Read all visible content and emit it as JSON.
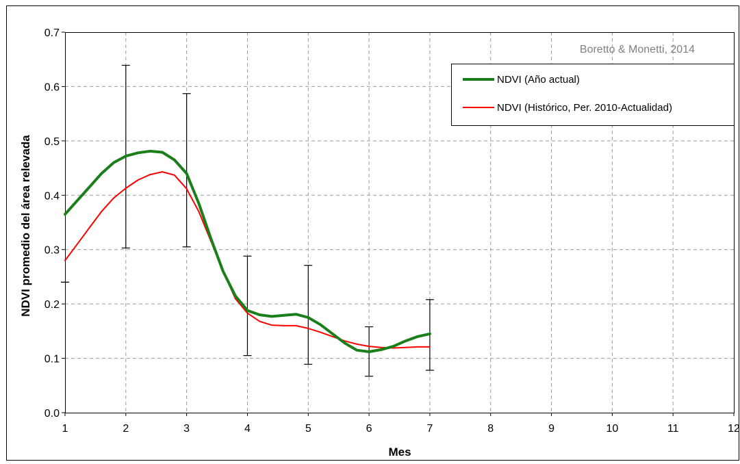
{
  "chart_data": {
    "type": "line",
    "title": "",
    "annotation": "Boretto & Monetti, 2014",
    "xlabel": "Mes",
    "ylabel": "NDVI promedio del área relevada",
    "xlim": [
      1,
      12
    ],
    "ylim": [
      0,
      0.7
    ],
    "x_ticks": [
      "1",
      "2",
      "3",
      "4",
      "5",
      "6",
      "7",
      "8",
      "9",
      "10",
      "11",
      "12"
    ],
    "y_ticks": [
      "0.0",
      "0.1",
      "0.2",
      "0.3",
      "0.4",
      "0.5",
      "0.6",
      "0.7"
    ],
    "grid": true,
    "legend_position": "top-right",
    "series": [
      {
        "name": "NDVI (Año actual)",
        "color": "#1a7f1a",
        "x": [
          1,
          1.2,
          1.4,
          1.6,
          1.8,
          2,
          2.2,
          2.4,
          2.6,
          2.8,
          3,
          3.2,
          3.4,
          3.6,
          3.8,
          4,
          4.2,
          4.4,
          4.6,
          4.8,
          5,
          5.2,
          5.4,
          5.6,
          5.8,
          6,
          6.2,
          6.4,
          6.6,
          6.8,
          7
        ],
        "y": [
          0.365,
          0.39,
          0.415,
          0.44,
          0.46,
          0.472,
          0.478,
          0.481,
          0.479,
          0.465,
          0.44,
          0.385,
          0.32,
          0.26,
          0.215,
          0.188,
          0.18,
          0.177,
          0.179,
          0.181,
          0.175,
          0.162,
          0.145,
          0.128,
          0.115,
          0.112,
          0.116,
          0.122,
          0.132,
          0.14,
          0.145
        ]
      },
      {
        "name": "NDVI (Histórico, Per. 2010-Actualidad)",
        "color": "#ff0000",
        "x": [
          1,
          1.2,
          1.4,
          1.6,
          1.8,
          2,
          2.2,
          2.4,
          2.6,
          2.8,
          3,
          3.2,
          3.4,
          3.6,
          3.8,
          4,
          4.2,
          4.4,
          4.6,
          4.8,
          5,
          5.2,
          5.4,
          5.6,
          5.8,
          6,
          6.2,
          6.4,
          6.6,
          6.8,
          7
        ],
        "y": [
          0.28,
          0.31,
          0.34,
          0.37,
          0.395,
          0.413,
          0.428,
          0.438,
          0.443,
          0.437,
          0.412,
          0.37,
          0.315,
          0.26,
          0.21,
          0.183,
          0.168,
          0.161,
          0.16,
          0.16,
          0.155,
          0.148,
          0.14,
          0.132,
          0.126,
          0.122,
          0.12,
          0.119,
          0.12,
          0.121,
          0.121
        ]
      }
    ],
    "error_bars": [
      {
        "x": 1,
        "low": 0.24,
        "high": 0.24
      },
      {
        "x": 2,
        "low": 0.303,
        "high": 0.639
      },
      {
        "x": 3,
        "low": 0.305,
        "high": 0.587
      },
      {
        "x": 4,
        "low": 0.105,
        "high": 0.288
      },
      {
        "x": 5,
        "low": 0.089,
        "high": 0.271
      },
      {
        "x": 6,
        "low": 0.067,
        "high": 0.158
      },
      {
        "x": 7,
        "low": 0.078,
        "high": 0.208
      }
    ]
  }
}
